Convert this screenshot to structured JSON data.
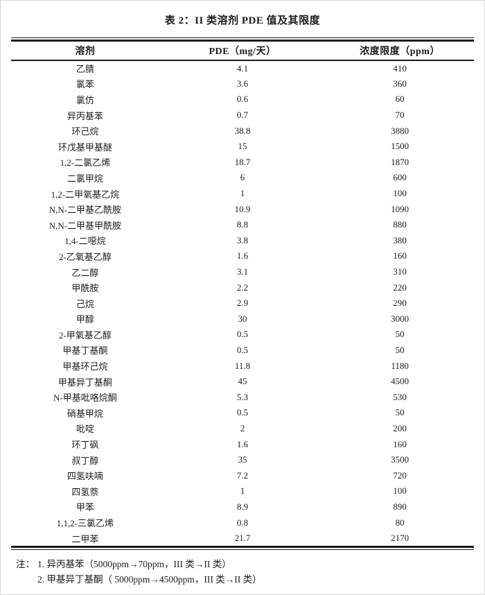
{
  "page": {
    "title": "表 2：II 类溶剂 PDE 值及其限度"
  },
  "table": {
    "columns": [
      "溶剂",
      "PDE（mg/天）",
      "浓度限度（ppm）"
    ],
    "rows": [
      {
        "name": "乙腈",
        "pde": "4.1",
        "limit": "410"
      },
      {
        "name": "氯苯",
        "pde": "3.6",
        "limit": "360"
      },
      {
        "name": "氯仿",
        "pde": "0.6",
        "limit": "60"
      },
      {
        "name": "异丙基苯",
        "pde": "0.7",
        "limit": "70"
      },
      {
        "name": "环己烷",
        "pde": "38.8",
        "limit": "3880"
      },
      {
        "name": "环戊基甲基醚",
        "pde": "15",
        "limit": "1500"
      },
      {
        "name": "1,2-二氯乙烯",
        "pde": "18.7",
        "limit": "1870"
      },
      {
        "name": "二氯甲烷",
        "pde": "6",
        "limit": "600"
      },
      {
        "name": "1,2-二甲氧基乙烷",
        "pde": "1",
        "limit": "100"
      },
      {
        "name": "N,N-二甲基乙酰胺",
        "pde": "10.9",
        "limit": "1090"
      },
      {
        "name": "N,N-二甲基甲酰胺",
        "pde": "8.8",
        "limit": "880"
      },
      {
        "name": "1,4-二噁烷",
        "pde": "3.8",
        "limit": "380"
      },
      {
        "name": "2-乙氧基乙醇",
        "pde": "1.6",
        "limit": "160"
      },
      {
        "name": "乙二醇",
        "pde": "3.1",
        "limit": "310"
      },
      {
        "name": "甲酰胺",
        "pde": "2.2",
        "limit": "220"
      },
      {
        "name": "己烷",
        "pde": "2.9",
        "limit": "290"
      },
      {
        "name": "甲醇",
        "pde": "30",
        "limit": "3000"
      },
      {
        "name": "2-甲氧基乙醇",
        "pde": "0.5",
        "limit": "50"
      },
      {
        "name": "甲基丁基酮",
        "pde": "0.5",
        "limit": "50"
      },
      {
        "name": "甲基环己烷",
        "pde": "11.8",
        "limit": "1180"
      },
      {
        "name": "甲基异丁基酮",
        "pde": "45",
        "limit": "4500"
      },
      {
        "name": "N-甲基吡咯烷酮",
        "pde": "5.3",
        "limit": "530"
      },
      {
        "name": "硝基甲烷",
        "pde": "0.5",
        "limit": "50"
      },
      {
        "name": "吡啶",
        "pde": "2",
        "limit": "200"
      },
      {
        "name": "环丁砜",
        "pde": "1.6",
        "limit": "160"
      },
      {
        "name": "叔丁醇",
        "pde": "35",
        "limit": "3500"
      },
      {
        "name": "四氢呋喃",
        "pde": "7.2",
        "limit": "720"
      },
      {
        "name": "四氢萘",
        "pde": "1",
        "limit": "100"
      },
      {
        "name": "甲苯",
        "pde": "8.9",
        "limit": "890"
      },
      {
        "name": "1,1,2-三氯乙烯",
        "pde": "0.8",
        "limit": "80"
      },
      {
        "name": "二甲苯",
        "pde": "21.7",
        "limit": "2170"
      }
    ]
  },
  "notes": {
    "label": "注：",
    "items": [
      "1. 异丙基苯（5000ppm→70ppm，III 类→II 类）",
      "2. 甲基异丁基酮（ 5000ppm→4500ppm，III 类→II 类）"
    ]
  },
  "colors": {
    "text": "#1c1c1c",
    "rule": "#191919",
    "background": "#ffffff",
    "frame": "#d6d6d6"
  }
}
